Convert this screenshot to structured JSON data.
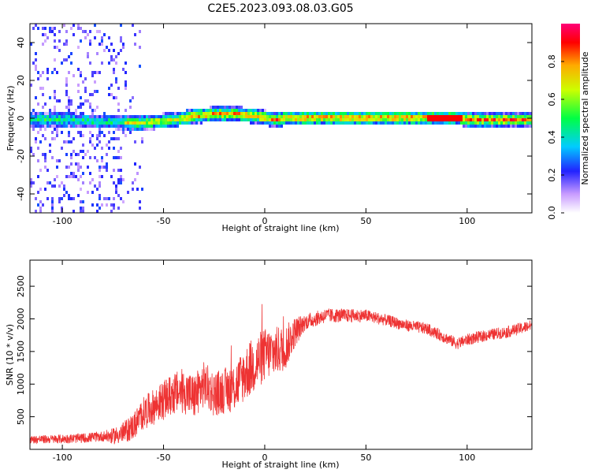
{
  "title": "C2E5.2023.093.08.03.G05",
  "chart_data": [
    {
      "type": "heatmap",
      "xlabel": "Height of straight line (km)",
      "ylabel": "Frequency (Hz)",
      "xlim": [
        -116,
        132
      ],
      "ylim": [
        -50,
        50
      ],
      "xticks": [
        -100,
        -50,
        0,
        50,
        100
      ],
      "yticks": [
        -40,
        -20,
        0,
        20,
        40
      ],
      "colorbar": {
        "label": "Normalized spectral amplitude",
        "ticks": [
          0.0,
          0.2,
          0.4,
          0.6,
          0.8
        ],
        "range": [
          0,
          1
        ]
      },
      "ridge": {
        "x": [
          -116,
          -100,
          -85,
          -75,
          -65,
          -55,
          -45,
          -35,
          -25,
          -15,
          -5,
          0,
          5,
          10,
          20,
          40,
          60,
          80,
          95,
          100,
          110,
          132
        ],
        "y": [
          0,
          0,
          -1,
          -1,
          -2,
          -1,
          0,
          2,
          3,
          3,
          2,
          1,
          0,
          1,
          1,
          1,
          1,
          1,
          1,
          0,
          0,
          0
        ]
      }
    },
    {
      "type": "line",
      "xlabel": "Height of straight line (km)",
      "ylabel": "SNR (10 * v/v)",
      "xlim": [
        -116,
        132
      ],
      "ylim": [
        0,
        2900
      ],
      "xticks": [
        -100,
        -50,
        0,
        50,
        100
      ],
      "yticks": [
        500,
        1000,
        1500,
        2000,
        2500
      ],
      "series": [
        {
          "color": "#ee3333",
          "envelope": {
            "x": [
              -116,
              -100,
              -90,
              -80,
              -75,
              -70,
              -65,
              -60,
              -55,
              -50,
              -45,
              -40,
              -35,
              -30,
              -25,
              -20,
              -15,
              -10,
              -5,
              0,
              5,
              10,
              15,
              20,
              30,
              40,
              50,
              60,
              70,
              80,
              90,
              95,
              100,
              110,
              120,
              132
            ],
            "y": [
              150,
              160,
              170,
              200,
              200,
              250,
              350,
              550,
              650,
              750,
              850,
              900,
              800,
              1000,
              850,
              900,
              950,
              1150,
              1300,
              1450,
              1500,
              1550,
              1800,
              1950,
              2050,
              2050,
              2050,
              1980,
              1900,
              1850,
              1700,
              1620,
              1680,
              1750,
              1800,
              1900
            ]
          },
          "spread": {
            "x": [
              -116,
              -80,
              -60,
              -40,
              -20,
              -5,
              10,
              20,
              60,
              132
            ],
            "y": [
              60,
              80,
              250,
              350,
              350,
              450,
              350,
              120,
              90,
              90
            ]
          }
        }
      ]
    }
  ]
}
